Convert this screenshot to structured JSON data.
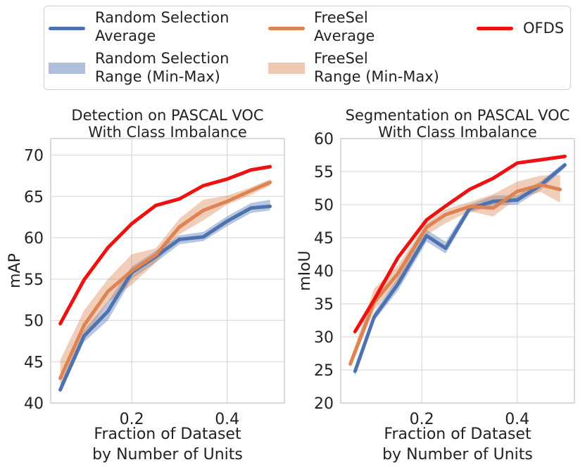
{
  "legend": {
    "items": [
      {
        "label": "Random Selection\nAverage",
        "kind": "line",
        "color": "#4c72b0"
      },
      {
        "label": "FreeSel\nAverage",
        "kind": "line",
        "color": "#dd8452"
      },
      {
        "label": "OFDS",
        "kind": "line",
        "color": "#ee1111"
      },
      {
        "label": "Random Selection\nRange (Min-Max)",
        "kind": "band",
        "color": "#4c72b0"
      },
      {
        "label": "FreeSel\nRange (Min-Max)",
        "kind": "band",
        "color": "#dd8452"
      }
    ]
  },
  "chart_data": [
    {
      "type": "line",
      "title": "Detection on PASCAL VOC\nWith Class Imbalance",
      "xlabel": "Fraction of Dataset\nby Number of Units",
      "ylabel": "mAP",
      "xlim": [
        0.03,
        0.52
      ],
      "ylim": [
        40,
        72
      ],
      "xticks": [
        0.2,
        0.4
      ],
      "xtick_labels": [
        "0.2",
        "0.4"
      ],
      "yticks": [
        40,
        45,
        50,
        55,
        60,
        65,
        70
      ],
      "grid": true,
      "series": [
        {
          "name": "Random Selection Average",
          "color": "#4c72b0",
          "x": [
            0.05,
            0.1,
            0.15,
            0.2,
            0.25,
            0.3,
            0.35,
            0.4,
            0.45,
            0.49
          ],
          "y": [
            41.6,
            48.1,
            51.1,
            55.8,
            57.7,
            59.8,
            60.1,
            62.0,
            63.6,
            63.8
          ],
          "min": [
            41.2,
            47.4,
            50.0,
            55.0,
            57.0,
            59.2,
            59.6,
            61.4,
            63.0,
            63.3
          ],
          "max": [
            42.3,
            48.8,
            52.3,
            56.5,
            58.4,
            60.3,
            60.7,
            62.6,
            64.2,
            64.6
          ]
        },
        {
          "name": "FreeSel Average",
          "color": "#dd8452",
          "x": [
            0.05,
            0.1,
            0.15,
            0.2,
            0.25,
            0.3,
            0.35,
            0.4,
            0.45,
            0.49
          ],
          "y": [
            43.0,
            49.4,
            53.5,
            56.0,
            57.9,
            61.3,
            63.3,
            64.4,
            65.7,
            66.7
          ],
          "min": [
            42.2,
            47.9,
            52.2,
            54.3,
            57.0,
            60.4,
            62.1,
            64.0,
            65.2,
            66.3
          ],
          "max": [
            45.2,
            51.2,
            55.0,
            58.0,
            58.7,
            62.3,
            64.6,
            65.1,
            66.1,
            67.1
          ]
        },
        {
          "name": "OFDS",
          "color": "#ee1111",
          "x": [
            0.05,
            0.1,
            0.15,
            0.2,
            0.25,
            0.3,
            0.35,
            0.4,
            0.45,
            0.49
          ],
          "y": [
            49.6,
            54.9,
            58.8,
            61.7,
            63.9,
            64.7,
            66.3,
            67.1,
            68.2,
            68.6
          ]
        }
      ]
    },
    {
      "type": "line",
      "title": "Segmentation on PASCAL VOC\nWith Class Imbalance",
      "xlabel": "Fraction of Dataset\nby Number of Units",
      "ylabel": "mIoU",
      "xlim": [
        0.03,
        0.52
      ],
      "ylim": [
        20,
        60
      ],
      "xticks": [
        0.2,
        0.4
      ],
      "xtick_labels": [
        "0.2",
        "0.4"
      ],
      "yticks": [
        20,
        25,
        30,
        35,
        40,
        45,
        50,
        55,
        60
      ],
      "grid": true,
      "series": [
        {
          "name": "Random Selection Average",
          "color": "#4c72b0",
          "x": [
            0.06,
            0.1,
            0.15,
            0.21,
            0.25,
            0.3,
            0.35,
            0.4,
            0.45,
            0.5
          ],
          "y": [
            24.8,
            33.0,
            38.0,
            45.3,
            43.4,
            49.4,
            50.5,
            50.7,
            53.0,
            56.0
          ],
          "min": [
            24.0,
            32.4,
            37.0,
            44.4,
            42.6,
            48.8,
            49.9,
            50.0,
            52.3,
            55.6
          ],
          "max": [
            25.5,
            33.7,
            39.0,
            46.2,
            44.4,
            50.0,
            51.4,
            51.4,
            53.6,
            56.4
          ]
        },
        {
          "name": "FreeSel Average",
          "color": "#dd8452",
          "x": [
            0.05,
            0.1,
            0.15,
            0.21,
            0.25,
            0.3,
            0.35,
            0.4,
            0.45,
            0.49
          ],
          "y": [
            25.9,
            35.2,
            39.6,
            46.6,
            48.5,
            49.7,
            49.5,
            52.0,
            53.0,
            52.3
          ],
          "min": [
            25.4,
            34.0,
            38.5,
            45.4,
            47.2,
            49.0,
            48.2,
            51.0,
            51.9,
            50.3
          ],
          "max": [
            26.5,
            37.3,
            40.8,
            47.3,
            49.3,
            50.4,
            51.6,
            53.5,
            54.4,
            54.5
          ]
        },
        {
          "name": "OFDS",
          "color": "#ee1111",
          "x": [
            0.06,
            0.1,
            0.15,
            0.21,
            0.25,
            0.3,
            0.35,
            0.4,
            0.45,
            0.5
          ],
          "y": [
            30.8,
            35.6,
            42.0,
            47.7,
            49.8,
            52.3,
            54.0,
            56.3,
            56.8,
            57.3
          ]
        }
      ]
    }
  ]
}
